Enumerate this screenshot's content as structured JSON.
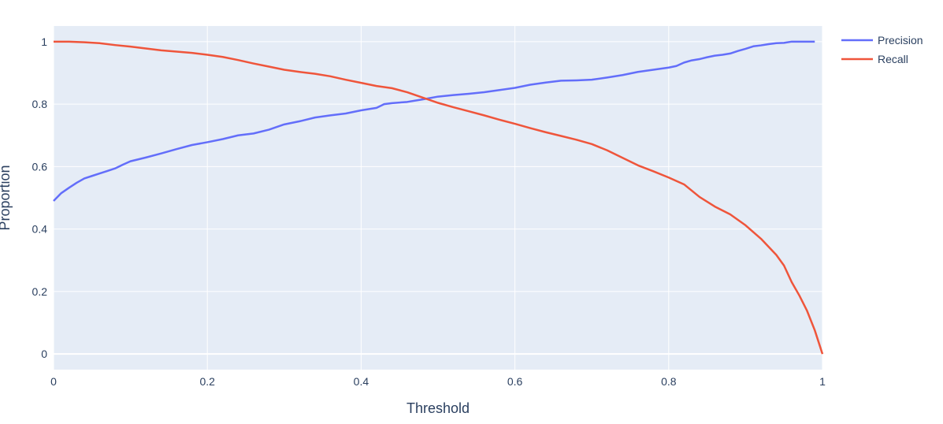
{
  "chart_data": {
    "type": "line",
    "xlabel": "Threshold",
    "ylabel": "Proportion",
    "xlim": [
      0,
      1
    ],
    "ylim": [
      -0.05,
      1.05
    ],
    "x_ticks": [
      0,
      0.2,
      0.4,
      0.6,
      0.8,
      1
    ],
    "x_tick_labels": [
      "0",
      "0.2",
      "0.4",
      "0.6",
      "0.8",
      "1"
    ],
    "y_ticks": [
      0,
      0.2,
      0.4,
      0.6,
      0.8,
      1
    ],
    "y_tick_labels": [
      "0",
      "0.2",
      "0.4",
      "0.6",
      "0.8",
      "1"
    ],
    "grid": true,
    "legend_position": "top-right",
    "plot_background": "#e5ecf6",
    "series": [
      {
        "name": "Precision",
        "color": "#636efa",
        "x": [
          0,
          0.01,
          0.02,
          0.03,
          0.04,
          0.05,
          0.06,
          0.07,
          0.08,
          0.09,
          0.1,
          0.12,
          0.14,
          0.16,
          0.18,
          0.2,
          0.22,
          0.24,
          0.26,
          0.28,
          0.3,
          0.32,
          0.34,
          0.36,
          0.38,
          0.4,
          0.42,
          0.43,
          0.44,
          0.46,
          0.48,
          0.5,
          0.52,
          0.54,
          0.56,
          0.58,
          0.6,
          0.62,
          0.64,
          0.66,
          0.68,
          0.7,
          0.72,
          0.74,
          0.76,
          0.78,
          0.8,
          0.81,
          0.82,
          0.83,
          0.84,
          0.85,
          0.86,
          0.87,
          0.88,
          0.89,
          0.9,
          0.91,
          0.92,
          0.93,
          0.94,
          0.95,
          0.96,
          0.97,
          0.98,
          0.99
        ],
        "y": [
          0.49,
          0.515,
          0.532,
          0.548,
          0.562,
          0.57,
          0.578,
          0.586,
          0.594,
          0.606,
          0.617,
          0.629,
          0.642,
          0.656,
          0.669,
          0.678,
          0.688,
          0.7,
          0.706,
          0.718,
          0.735,
          0.745,
          0.757,
          0.764,
          0.77,
          0.78,
          0.788,
          0.8,
          0.803,
          0.807,
          0.815,
          0.824,
          0.829,
          0.833,
          0.838,
          0.845,
          0.852,
          0.862,
          0.869,
          0.875,
          0.876,
          0.878,
          0.885,
          0.893,
          0.903,
          0.91,
          0.917,
          0.922,
          0.933,
          0.94,
          0.944,
          0.95,
          0.955,
          0.958,
          0.962,
          0.97,
          0.977,
          0.985,
          0.988,
          0.992,
          0.995,
          0.996,
          1.0,
          1.0,
          1.0,
          1.0
        ]
      },
      {
        "name": "Recall",
        "color": "#ef553b",
        "x": [
          0,
          0.02,
          0.04,
          0.06,
          0.08,
          0.1,
          0.12,
          0.14,
          0.16,
          0.18,
          0.2,
          0.22,
          0.24,
          0.26,
          0.28,
          0.3,
          0.32,
          0.34,
          0.36,
          0.38,
          0.4,
          0.42,
          0.44,
          0.46,
          0.48,
          0.5,
          0.52,
          0.54,
          0.56,
          0.58,
          0.6,
          0.62,
          0.64,
          0.66,
          0.68,
          0.7,
          0.72,
          0.74,
          0.76,
          0.78,
          0.8,
          0.82,
          0.84,
          0.86,
          0.88,
          0.9,
          0.92,
          0.94,
          0.95,
          0.96,
          0.97,
          0.98,
          0.99,
          1.0
        ],
        "y": [
          1.0,
          1.0,
          0.998,
          0.995,
          0.989,
          0.984,
          0.978,
          0.972,
          0.968,
          0.964,
          0.958,
          0.951,
          0.941,
          0.93,
          0.92,
          0.91,
          0.903,
          0.897,
          0.889,
          0.878,
          0.868,
          0.858,
          0.851,
          0.838,
          0.821,
          0.804,
          0.79,
          0.777,
          0.764,
          0.75,
          0.737,
          0.723,
          0.71,
          0.698,
          0.686,
          0.672,
          0.652,
          0.628,
          0.604,
          0.585,
          0.565,
          0.543,
          0.503,
          0.472,
          0.447,
          0.412,
          0.369,
          0.317,
          0.283,
          0.23,
          0.187,
          0.138,
          0.076,
          0.0
        ]
      }
    ]
  }
}
